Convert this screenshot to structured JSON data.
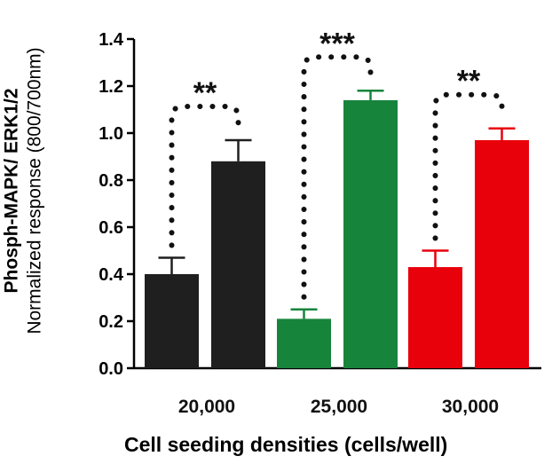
{
  "chart_data": {
    "type": "bar",
    "title": "",
    "ylabel_line1": "Phosph-MAPK/ ERK1/2",
    "ylabel_line2": "Normalized response (800/700nm)",
    "xlabel": "Cell seeding densities (cells/well)",
    "ylim": [
      0,
      1.4
    ],
    "yticks": [
      "0.0",
      "0.2",
      "0.4",
      "0.6",
      "0.8",
      "1.0",
      "1.2",
      "1.4"
    ],
    "groups": [
      {
        "label": "20,000",
        "color": "#1f1f1f",
        "values": [
          0.4,
          0.88
        ],
        "errors": [
          0.07,
          0.09
        ],
        "significance": "**"
      },
      {
        "label": "25,000",
        "color": "#17843c",
        "values": [
          0.21,
          1.14
        ],
        "errors": [
          0.04,
          0.04
        ],
        "significance": "***"
      },
      {
        "label": "30,000",
        "color": "#e8000b",
        "values": [
          0.43,
          0.97
        ],
        "errors": [
          0.07,
          0.05
        ],
        "significance": "**"
      }
    ]
  }
}
